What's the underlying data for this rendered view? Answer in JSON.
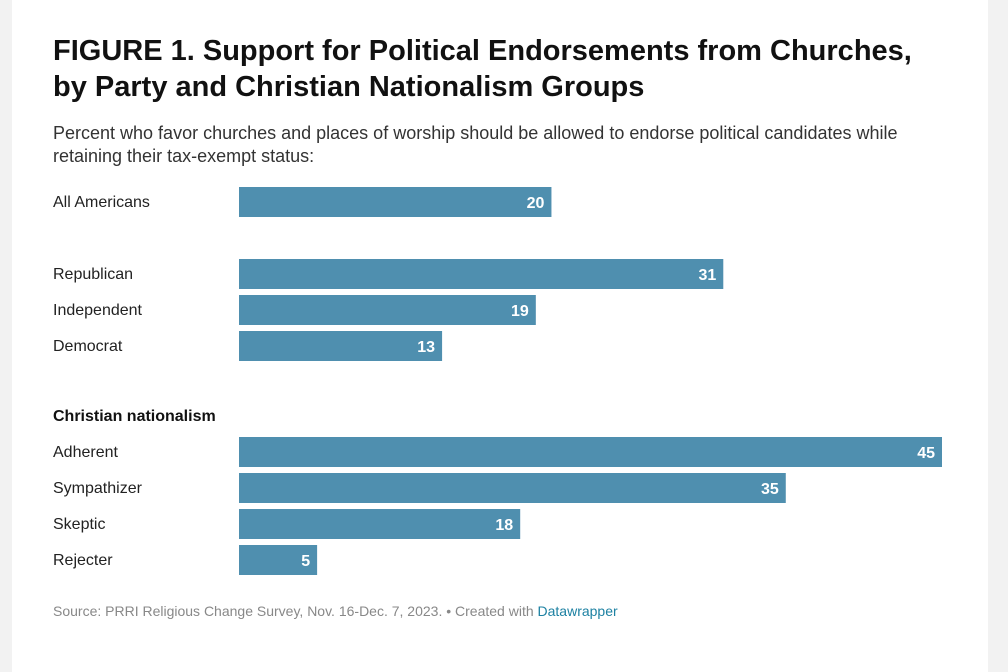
{
  "chart_data": {
    "type": "bar",
    "title": "FIGURE 1. Support for Political Endorsements from Churches, by Party and Christian Nationalism Groups",
    "subtitle": "Percent who favor churches and places of worship should be allowed to endorse political candidates while retaining their tax-exempt status:",
    "orientation": "horizontal",
    "bar_color": "#4f8faf",
    "groups": [
      {
        "header": "",
        "categories": [
          "All Americans"
        ],
        "values": [
          20
        ]
      },
      {
        "header": "",
        "categories": [
          "Republican",
          "Independent",
          "Democrat"
        ],
        "values": [
          31,
          19,
          13
        ]
      },
      {
        "header": "Christian nationalism",
        "categories": [
          "Adherent",
          "Sympathizer",
          "Skeptic",
          "Rejecter"
        ],
        "values": [
          45,
          35,
          18,
          5
        ]
      }
    ],
    "xlim": [
      0,
      45
    ],
    "grid": false,
    "legend": "none"
  },
  "footer": {
    "source_text": "Source: PRRI Religious Change Survey, Nov. 16-Dec. 7, 2023. • Created with ",
    "link_text": "Datawrapper"
  }
}
